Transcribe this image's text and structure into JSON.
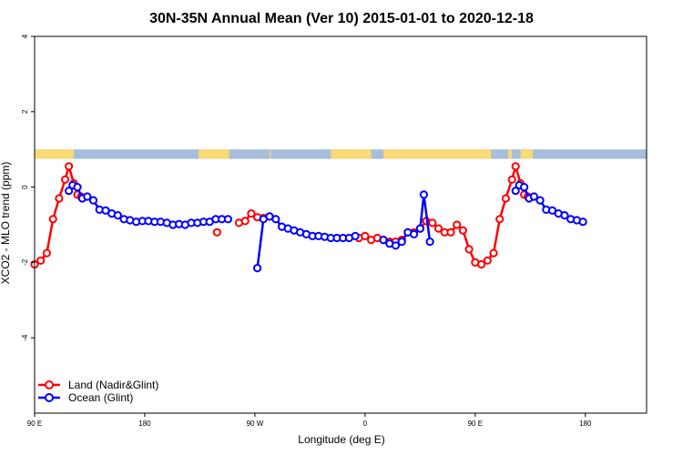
{
  "chart_data": {
    "type": "line",
    "title": "30N-35N Annual Mean (Ver 10)   2015-01-01 to 2020-12-18",
    "xlabel": "Longitude (deg E)",
    "ylabel": "XCO2 - MLO trend (ppm)",
    "xlim": [
      90,
      590
    ],
    "ylim": [
      -6,
      4
    ],
    "x_ticks": [
      {
        "value": 90,
        "label": "90 E"
      },
      {
        "value": 180,
        "label": "180"
      },
      {
        "value": 270,
        "label": "90 W"
      },
      {
        "value": 360,
        "label": "0"
      },
      {
        "value": 450,
        "label": "90 E"
      },
      {
        "value": 540,
        "label": "180"
      }
    ],
    "y_ticks": [
      {
        "value": -4,
        "label": "-4"
      },
      {
        "value": -2,
        "label": "-2"
      },
      {
        "value": 0,
        "label": "0"
      },
      {
        "value": 2,
        "label": "2"
      },
      {
        "value": 4,
        "label": "4"
      }
    ],
    "grid": false,
    "legend_position": "bottom-left",
    "land_ocean_band": {
      "y_range": [
        0.75,
        1.0
      ],
      "land_color": "#FADA77",
      "ocean_color": "#A6BDDB",
      "land_intervals": [
        [
          90,
          122
        ],
        [
          111,
          120
        ],
        [
          224,
          249
        ],
        [
          282,
          283
        ],
        [
          332,
          365
        ],
        [
          337,
          345
        ],
        [
          375,
          463
        ],
        [
          477,
          480
        ],
        [
          487,
          497
        ]
      ]
    },
    "series": [
      {
        "name": "Land (Nadir&Glint)",
        "color": "#FF0000",
        "segments": [
          [
            [
              90,
              -2.05
            ],
            [
              95,
              -1.95
            ],
            [
              100,
              -1.75
            ],
            [
              105,
              -0.85
            ],
            [
              110,
              -0.3
            ],
            [
              115,
              0.2
            ],
            [
              118,
              0.55
            ],
            [
              122,
              0.1
            ],
            [
              125,
              -0.2
            ],
            [
              128,
              -0.25
            ]
          ],
          [
            [
              239,
              -1.2
            ]
          ],
          [
            [
              257,
              -0.95
            ],
            [
              262,
              -0.9
            ],
            [
              267,
              -0.7
            ],
            [
              272,
              -0.8
            ],
            [
              277,
              -0.82
            ],
            [
              282,
              -0.78
            ]
          ],
          [
            [
              355,
              -1.35
            ],
            [
              360,
              -1.3
            ],
            [
              365,
              -1.4
            ],
            [
              370,
              -1.35
            ],
            [
              375,
              -1.4
            ],
            [
              380,
              -1.45
            ],
            [
              385,
              -1.45
            ],
            [
              390,
              -1.4
            ],
            [
              395,
              -1.2
            ],
            [
              400,
              -1.2
            ],
            [
              405,
              -1.1
            ],
            [
              410,
              -0.9
            ],
            [
              415,
              -0.95
            ],
            [
              420,
              -1.1
            ],
            [
              425,
              -1.2
            ],
            [
              430,
              -1.2
            ],
            [
              435,
              -1.0
            ],
            [
              440,
              -1.15
            ],
            [
              445,
              -1.65
            ],
            [
              450,
              -2.0
            ],
            [
              455,
              -2.05
            ],
            [
              460,
              -1.95
            ],
            [
              465,
              -1.75
            ],
            [
              470,
              -0.85
            ],
            [
              475,
              -0.3
            ],
            [
              480,
              0.2
            ],
            [
              483,
              0.55
            ],
            [
              487,
              0.1
            ],
            [
              490,
              -0.2
            ],
            [
              493,
              -0.25
            ]
          ]
        ]
      },
      {
        "name": "Ocean (Glint)",
        "color": "#0000FF",
        "segments": [
          [
            [
              118,
              -0.1
            ],
            [
              121,
              0.05
            ],
            [
              125,
              0.0
            ],
            [
              129,
              -0.3
            ],
            [
              133,
              -0.25
            ],
            [
              138,
              -0.35
            ],
            [
              143,
              -0.6
            ],
            [
              148,
              -0.62
            ],
            [
              153,
              -0.7
            ],
            [
              158,
              -0.75
            ],
            [
              163,
              -0.85
            ],
            [
              168,
              -0.88
            ],
            [
              173,
              -0.92
            ],
            [
              178,
              -0.9
            ],
            [
              183,
              -0.9
            ],
            [
              188,
              -0.92
            ],
            [
              193,
              -0.92
            ],
            [
              198,
              -0.95
            ],
            [
              203,
              -1.0
            ],
            [
              208,
              -0.98
            ],
            [
              213,
              -1.0
            ],
            [
              218,
              -0.95
            ],
            [
              223,
              -0.95
            ],
            [
              228,
              -0.92
            ],
            [
              233,
              -0.92
            ],
            [
              238,
              -0.85
            ],
            [
              243,
              -0.85
            ],
            [
              248,
              -0.85
            ]
          ],
          [
            [
              272,
              -2.15
            ],
            [
              277,
              -0.85
            ],
            [
              282,
              -0.78
            ],
            [
              287,
              -0.85
            ],
            [
              292,
              -1.05
            ],
            [
              297,
              -1.1
            ],
            [
              302,
              -1.15
            ],
            [
              307,
              -1.2
            ],
            [
              312,
              -1.25
            ],
            [
              317,
              -1.3
            ],
            [
              322,
              -1.3
            ],
            [
              327,
              -1.32
            ],
            [
              332,
              -1.35
            ],
            [
              337,
              -1.35
            ],
            [
              342,
              -1.35
            ],
            [
              347,
              -1.35
            ],
            [
              352,
              -1.3
            ]
          ],
          [
            [
              375,
              -1.4
            ],
            [
              380,
              -1.5
            ],
            [
              385,
              -1.55
            ],
            [
              390,
              -1.45
            ],
            [
              395,
              -1.2
            ],
            [
              400,
              -1.25
            ],
            [
              405,
              -1.1
            ],
            [
              408,
              -0.2
            ],
            [
              413,
              -1.45
            ]
          ],
          [
            [
              483,
              -0.1
            ],
            [
              486,
              0.05
            ],
            [
              490,
              0.0
            ],
            [
              494,
              -0.3
            ],
            [
              498,
              -0.25
            ],
            [
              503,
              -0.35
            ],
            [
              508,
              -0.6
            ],
            [
              513,
              -0.62
            ],
            [
              518,
              -0.7
            ],
            [
              523,
              -0.75
            ],
            [
              528,
              -0.85
            ],
            [
              533,
              -0.88
            ],
            [
              538,
              -0.92
            ]
          ]
        ]
      }
    ]
  }
}
